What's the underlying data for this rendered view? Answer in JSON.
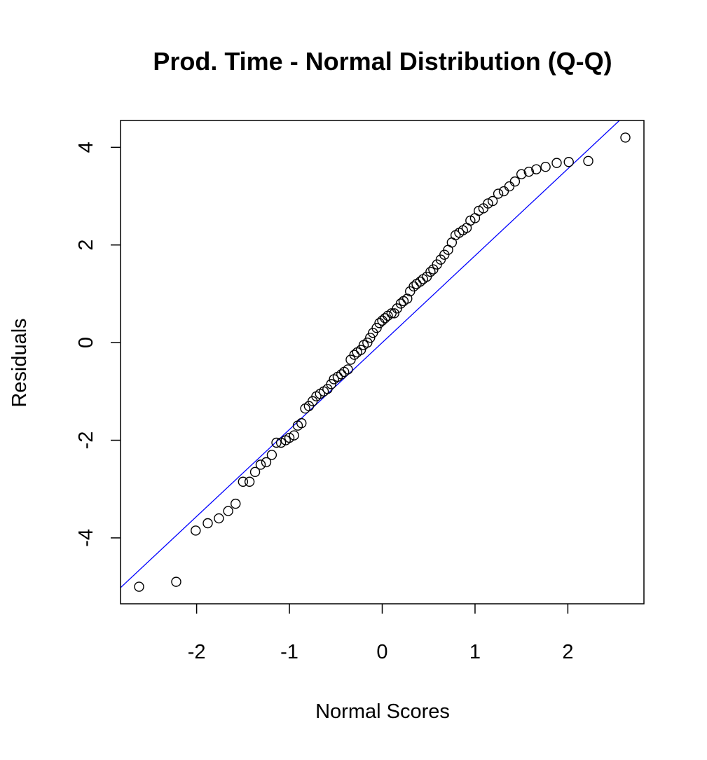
{
  "chart_data": {
    "type": "scatter",
    "title": "Prod. Time - Normal Distribution (Q-Q)",
    "xlabel": "Normal Scores",
    "ylabel": "Residuals",
    "xlim": [
      -2.82,
      2.82
    ],
    "ylim": [
      -5.35,
      4.55
    ],
    "xticks": [
      -2,
      -1,
      0,
      1,
      2
    ],
    "yticks": [
      -4,
      -2,
      0,
      2,
      4
    ],
    "xtick_labels": [
      "-2",
      "-1",
      "0",
      "1",
      "2"
    ],
    "ytick_labels": [
      "-4",
      "-2",
      "0",
      "2",
      "4"
    ],
    "grid": false,
    "point_style": "open circle",
    "point_color": "#000000",
    "reference_line": {
      "intercept": 0.0,
      "slope": 1.78,
      "color": "#0000ff"
    },
    "series": [
      {
        "x": [
          -2.62,
          -2.22,
          -2.01,
          -1.88,
          -1.76,
          -1.66,
          -1.58,
          -1.5,
          -1.43,
          -1.37,
          -1.31,
          -1.25,
          -1.19,
          -1.14,
          -1.09,
          -1.04,
          -1.0,
          -0.95,
          -0.91,
          -0.87,
          -0.83,
          -0.79,
          -0.75,
          -0.71,
          -0.67,
          -0.63,
          -0.59,
          -0.55,
          -0.52,
          -0.48,
          -0.44,
          -0.41,
          -0.37,
          -0.34,
          -0.3,
          -0.27,
          -0.23,
          -0.2,
          -0.16,
          -0.13,
          -0.1,
          -0.06,
          -0.03,
          0.0,
          0.03,
          0.06,
          0.1,
          0.13,
          0.16,
          0.2,
          0.23,
          0.27,
          0.3,
          0.34,
          0.37,
          0.41,
          0.44,
          0.48,
          0.52,
          0.55,
          0.59,
          0.63,
          0.67,
          0.71,
          0.75,
          0.79,
          0.83,
          0.87,
          0.91,
          0.95,
          1.0,
          1.04,
          1.09,
          1.14,
          1.19,
          1.25,
          1.31,
          1.37,
          1.43,
          1.5,
          1.58,
          1.66,
          1.76,
          1.88,
          2.01,
          2.22,
          2.62
        ],
        "y": [
          -5.0,
          -4.9,
          -3.85,
          -3.7,
          -3.6,
          -3.45,
          -3.3,
          -2.85,
          -2.85,
          -2.65,
          -2.5,
          -2.45,
          -2.3,
          -2.05,
          -2.05,
          -2.0,
          -1.95,
          -1.9,
          -1.7,
          -1.65,
          -1.35,
          -1.3,
          -1.2,
          -1.1,
          -1.05,
          -1.0,
          -0.95,
          -0.85,
          -0.75,
          -0.7,
          -0.65,
          -0.6,
          -0.55,
          -0.35,
          -0.25,
          -0.2,
          -0.15,
          -0.05,
          0.0,
          0.1,
          0.2,
          0.3,
          0.4,
          0.45,
          0.5,
          0.55,
          0.6,
          0.6,
          0.7,
          0.8,
          0.85,
          0.9,
          1.05,
          1.15,
          1.2,
          1.25,
          1.3,
          1.35,
          1.45,
          1.5,
          1.6,
          1.7,
          1.8,
          1.9,
          2.05,
          2.2,
          2.25,
          2.3,
          2.35,
          2.5,
          2.55,
          2.7,
          2.75,
          2.85,
          2.9,
          3.05,
          3.1,
          3.2,
          3.3,
          3.45,
          3.5,
          3.55,
          3.6,
          3.68,
          3.7,
          3.72,
          4.2
        ]
      }
    ]
  }
}
